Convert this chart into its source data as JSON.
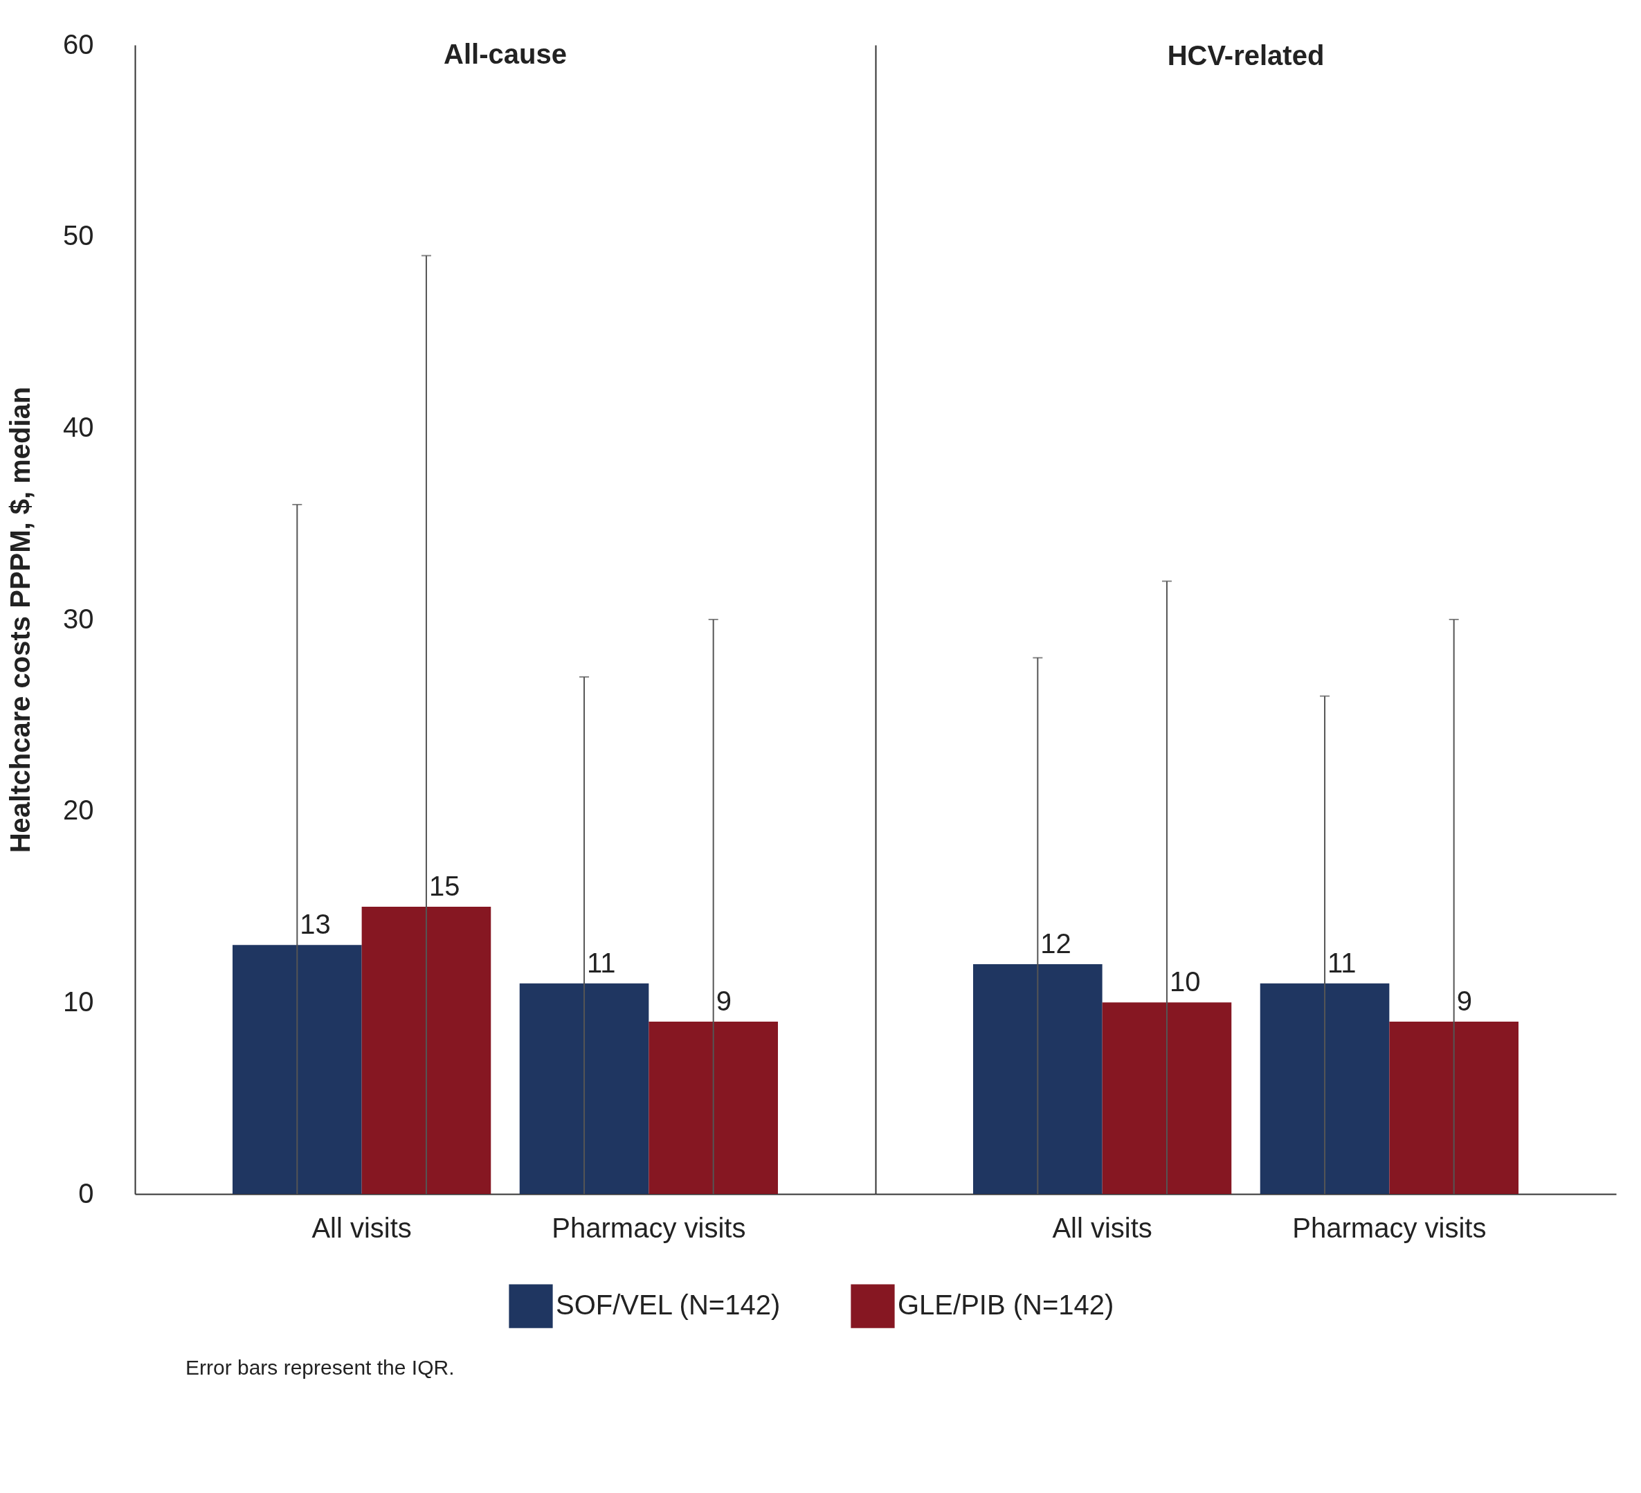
{
  "chart_data": [
    {
      "type": "bar",
      "title": "All-cause",
      "ylabel": "Healtchcare costs PPPM, $, median",
      "categories": [
        "All visits",
        "Pharmacy visits"
      ],
      "series": [
        {
          "name": "SOF/VEL (N=142)",
          "color": "#1f3661",
          "values": [
            13,
            11
          ],
          "errors": [
            [
              0,
              36
            ],
            [
              0,
              27
            ]
          ]
        },
        {
          "name": "GLE/PIB (N=142)",
          "color": "#861722",
          "values": [
            15,
            9
          ],
          "errors": [
            [
              0,
              49
            ],
            [
              0,
              30
            ]
          ]
        }
      ],
      "ylim": [
        0,
        60
      ],
      "yticks": [
        0,
        10,
        20,
        30,
        40,
        50,
        60
      ],
      "data_labels": true,
      "legend": "bottom",
      "annotations": [
        "Error bars represent the IQR."
      ]
    },
    {
      "type": "bar",
      "title": "HCV-related",
      "categories": [
        "All visits",
        "Pharmacy visits"
      ],
      "series": [
        {
          "name": "SOF/VEL (N=142)",
          "color": "#1f3661",
          "values": [
            12,
            11
          ],
          "errors": [
            [
              0,
              28
            ],
            [
              0,
              26
            ]
          ]
        },
        {
          "name": "GLE/PIB (N=142)",
          "color": "#861722",
          "values": [
            10,
            9
          ],
          "errors": [
            [
              0,
              32
            ],
            [
              0,
              30
            ]
          ]
        }
      ],
      "ylim": [
        0,
        60
      ],
      "yticks": [
        0,
        10,
        20,
        30,
        40,
        50,
        60
      ],
      "data_labels": true,
      "tick_labels": "x",
      "legend": "bottom"
    }
  ]
}
